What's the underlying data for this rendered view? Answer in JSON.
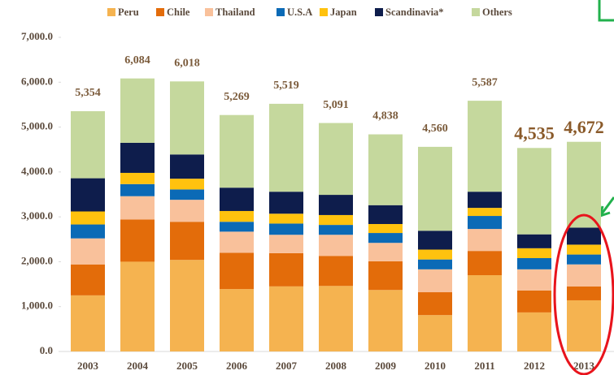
{
  "chart_data": {
    "type": "stacked_bar",
    "categories": [
      "2003",
      "2004",
      "2005",
      "2006",
      "2007",
      "2008",
      "2009",
      "2010",
      "2011",
      "2012",
      "2013"
    ],
    "series": [
      {
        "name": "Peru",
        "color": "#f5b350",
        "values": [
          1250,
          2000,
          2040,
          1390,
          1450,
          1460,
          1370,
          810,
          1700,
          870,
          1140
        ]
      },
      {
        "name": "Chile",
        "color": "#e36c0a",
        "values": [
          690,
          940,
          850,
          810,
          740,
          670,
          640,
          510,
          540,
          490,
          310
        ]
      },
      {
        "name": "Thailand",
        "color": "#f9c19b",
        "values": [
          580,
          520,
          490,
          470,
          410,
          470,
          410,
          510,
          490,
          470,
          490
        ]
      },
      {
        "name": "U.S.A",
        "color": "#0b6ab6",
        "values": [
          310,
          270,
          230,
          220,
          250,
          220,
          220,
          220,
          290,
          250,
          220
        ]
      },
      {
        "name": "Japan",
        "color": "#ffc20e",
        "values": [
          290,
          250,
          240,
          240,
          220,
          220,
          200,
          220,
          180,
          220,
          220
        ]
      },
      {
        "name": "Scandinavia*",
        "color": "#0e1d4c",
        "values": [
          740,
          670,
          540,
          520,
          490,
          450,
          420,
          420,
          360,
          310,
          380
        ]
      },
      {
        "name": "Others",
        "color": "#c5d89d",
        "values": [
          1494,
          1434,
          1628,
          1619,
          1959,
          1601,
          1578,
          1870,
          2027,
          1925,
          1912
        ]
      }
    ],
    "totals": [
      5354,
      6084,
      6018,
      5269,
      5519,
      5091,
      4838,
      4560,
      5587,
      4535,
      4672
    ],
    "total_labels": [
      "5,354",
      "6,084",
      "6,018",
      "5,269",
      "5,519",
      "5,091",
      "4,838",
      "4,560",
      "5,587",
      "4,535",
      "4,672"
    ],
    "ylim": [
      0,
      7000
    ],
    "yticks": [
      {
        "value": 0,
        "label": "0.0"
      },
      {
        "value": 1000,
        "label": "1,000.0"
      },
      {
        "value": 2000,
        "label": "2,000.0"
      },
      {
        "value": 3000,
        "label": "3,000.0"
      },
      {
        "value": 4000,
        "label": "4,000.0"
      },
      {
        "value": 5000,
        "label": "5,000.0"
      },
      {
        "value": 6000,
        "label": "6,000.0"
      },
      {
        "value": 7000,
        "label": "7,000.0"
      }
    ],
    "grid": false,
    "legend": "top"
  }
}
